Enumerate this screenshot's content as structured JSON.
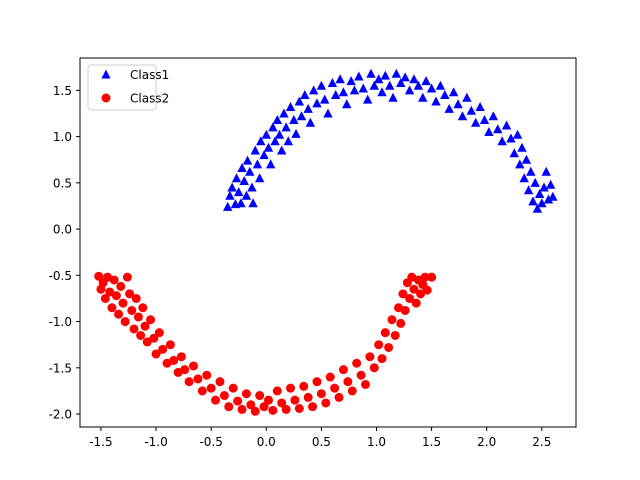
{
  "chart_data": {
    "type": "scatter",
    "title": "",
    "xlabel": "",
    "ylabel": "",
    "xlim": [
      -1.69,
      2.81
    ],
    "ylim": [
      -2.14,
      1.85
    ],
    "grid": false,
    "legend_position": "top-left",
    "xticks": [
      "-1.5",
      "-1.0",
      "-0.5",
      "0.0",
      "0.5",
      "1.0",
      "1.5",
      "2.0",
      "2.5"
    ],
    "yticks": [
      "-2.0",
      "-1.5",
      "-1.0",
      "-0.5",
      "0.0",
      "0.5",
      "1.0",
      "1.5"
    ],
    "series": [
      {
        "name": "Class1",
        "marker": "triangle",
        "color": "#0000ff",
        "points": [
          [
            -0.35,
            0.24
          ],
          [
            -0.33,
            0.36
          ],
          [
            -0.31,
            0.45
          ],
          [
            -0.28,
            0.27
          ],
          [
            -0.27,
            0.55
          ],
          [
            -0.25,
            0.4
          ],
          [
            -0.23,
            0.28
          ],
          [
            -0.22,
            0.66
          ],
          [
            -0.2,
            0.52
          ],
          [
            -0.18,
            0.36
          ],
          [
            -0.17,
            0.74
          ],
          [
            -0.15,
            0.62
          ],
          [
            -0.13,
            0.45
          ],
          [
            -0.12,
            0.28
          ],
          [
            -0.1,
            0.85
          ],
          [
            -0.08,
            0.7
          ],
          [
            -0.06,
            0.55
          ],
          [
            -0.05,
            0.95
          ],
          [
            -0.02,
            0.8
          ],
          [
            0.0,
            1.02
          ],
          [
            0.02,
            0.88
          ],
          [
            0.04,
            0.7
          ],
          [
            0.06,
            1.1
          ],
          [
            0.08,
            0.95
          ],
          [
            0.1,
            1.18
          ],
          [
            0.12,
            1.02
          ],
          [
            0.14,
            0.85
          ],
          [
            0.16,
            1.25
          ],
          [
            0.18,
            1.1
          ],
          [
            0.2,
            0.95
          ],
          [
            0.22,
            1.32
          ],
          [
            0.25,
            1.18
          ],
          [
            0.27,
            1.03
          ],
          [
            0.3,
            1.38
          ],
          [
            0.32,
            1.22
          ],
          [
            0.35,
            1.45
          ],
          [
            0.38,
            1.3
          ],
          [
            0.4,
            1.15
          ],
          [
            0.43,
            1.5
          ],
          [
            0.46,
            1.36
          ],
          [
            0.5,
            1.55
          ],
          [
            0.53,
            1.4
          ],
          [
            0.56,
            1.25
          ],
          [
            0.6,
            1.58
          ],
          [
            0.63,
            1.45
          ],
          [
            0.67,
            1.62
          ],
          [
            0.7,
            1.48
          ],
          [
            0.73,
            1.35
          ],
          [
            0.77,
            1.6
          ],
          [
            0.8,
            1.5
          ],
          [
            0.84,
            1.65
          ],
          [
            0.88,
            1.52
          ],
          [
            0.92,
            1.4
          ],
          [
            0.95,
            1.68
          ],
          [
            0.98,
            1.55
          ],
          [
            1.02,
            1.62
          ],
          [
            1.05,
            1.48
          ],
          [
            1.08,
            1.66
          ],
          [
            1.12,
            1.55
          ],
          [
            1.15,
            1.42
          ],
          [
            1.18,
            1.68
          ],
          [
            1.22,
            1.58
          ],
          [
            1.26,
            1.64
          ],
          [
            1.3,
            1.5
          ],
          [
            1.34,
            1.62
          ],
          [
            1.38,
            1.55
          ],
          [
            1.42,
            1.42
          ],
          [
            1.45,
            1.6
          ],
          [
            1.5,
            1.52
          ],
          [
            1.54,
            1.38
          ],
          [
            1.58,
            1.55
          ],
          [
            1.62,
            1.45
          ],
          [
            1.66,
            1.3
          ],
          [
            1.7,
            1.48
          ],
          [
            1.74,
            1.35
          ],
          [
            1.78,
            1.22
          ],
          [
            1.82,
            1.42
          ],
          [
            1.86,
            1.28
          ],
          [
            1.9,
            1.15
          ],
          [
            1.94,
            1.32
          ],
          [
            1.98,
            1.18
          ],
          [
            2.02,
            1.05
          ],
          [
            2.06,
            1.22
          ],
          [
            2.1,
            1.08
          ],
          [
            2.14,
            0.95
          ],
          [
            2.18,
            1.12
          ],
          [
            2.22,
            0.98
          ],
          [
            2.25,
            0.82
          ],
          [
            2.28,
            1.02
          ],
          [
            2.3,
            0.7
          ],
          [
            2.32,
            0.88
          ],
          [
            2.34,
            0.55
          ],
          [
            2.36,
            0.75
          ],
          [
            2.38,
            0.42
          ],
          [
            2.4,
            0.62
          ],
          [
            2.42,
            0.3
          ],
          [
            2.44,
            0.5
          ],
          [
            2.46,
            0.22
          ],
          [
            2.48,
            0.38
          ],
          [
            2.5,
            0.28
          ],
          [
            2.52,
            0.45
          ],
          [
            2.54,
            0.62
          ],
          [
            2.56,
            0.32
          ],
          [
            2.58,
            0.48
          ],
          [
            2.6,
            0.35
          ]
        ]
      },
      {
        "name": "Class2",
        "marker": "circle",
        "color": "#ff0000",
        "points": [
          [
            -1.52,
            -0.51
          ],
          [
            -1.5,
            -0.65
          ],
          [
            -1.48,
            -0.58
          ],
          [
            -1.46,
            -0.75
          ],
          [
            -1.44,
            -0.52
          ],
          [
            -1.42,
            -0.68
          ],
          [
            -1.4,
            -0.85
          ],
          [
            -1.38,
            -0.55
          ],
          [
            -1.36,
            -0.72
          ],
          [
            -1.34,
            -0.92
          ],
          [
            -1.32,
            -0.62
          ],
          [
            -1.3,
            -0.8
          ],
          [
            -1.28,
            -1.0
          ],
          [
            -1.26,
            -0.52
          ],
          [
            -1.24,
            -0.7
          ],
          [
            -1.22,
            -0.88
          ],
          [
            -1.2,
            -1.08
          ],
          [
            -1.18,
            -0.75
          ],
          [
            -1.16,
            -0.95
          ],
          [
            -1.14,
            -1.15
          ],
          [
            -1.12,
            -0.85
          ],
          [
            -1.1,
            -1.05
          ],
          [
            -1.08,
            -1.22
          ],
          [
            -1.05,
            -0.98
          ],
          [
            -1.02,
            -1.18
          ],
          [
            -1.0,
            -1.35
          ],
          [
            -0.97,
            -1.12
          ],
          [
            -0.94,
            -1.3
          ],
          [
            -0.9,
            -1.45
          ],
          [
            -0.87,
            -1.25
          ],
          [
            -0.84,
            -1.42
          ],
          [
            -0.8,
            -1.55
          ],
          [
            -0.77,
            -1.38
          ],
          [
            -0.74,
            -1.52
          ],
          [
            -0.7,
            -1.65
          ],
          [
            -0.66,
            -1.48
          ],
          [
            -0.62,
            -1.62
          ],
          [
            -0.58,
            -1.75
          ],
          [
            -0.54,
            -1.58
          ],
          [
            -0.5,
            -1.72
          ],
          [
            -0.46,
            -1.85
          ],
          [
            -0.42,
            -1.65
          ],
          [
            -0.38,
            -1.8
          ],
          [
            -0.34,
            -1.92
          ],
          [
            -0.3,
            -1.72
          ],
          [
            -0.26,
            -1.86
          ],
          [
            -0.22,
            -1.95
          ],
          [
            -0.18,
            -1.78
          ],
          [
            -0.14,
            -1.9
          ],
          [
            -0.1,
            -1.97
          ],
          [
            -0.06,
            -1.8
          ],
          [
            -0.02,
            -1.92
          ],
          [
            0.02,
            -1.85
          ],
          [
            0.06,
            -1.96
          ],
          [
            0.1,
            -1.75
          ],
          [
            0.14,
            -1.88
          ],
          [
            0.18,
            -1.95
          ],
          [
            0.22,
            -1.72
          ],
          [
            0.26,
            -1.85
          ],
          [
            0.3,
            -1.94
          ],
          [
            0.34,
            -1.7
          ],
          [
            0.38,
            -1.82
          ],
          [
            0.42,
            -1.92
          ],
          [
            0.46,
            -1.65
          ],
          [
            0.5,
            -1.78
          ],
          [
            0.54,
            -1.88
          ],
          [
            0.58,
            -1.6
          ],
          [
            0.62,
            -1.72
          ],
          [
            0.66,
            -1.82
          ],
          [
            0.7,
            -1.52
          ],
          [
            0.74,
            -1.65
          ],
          [
            0.78,
            -1.75
          ],
          [
            0.82,
            -1.45
          ],
          [
            0.86,
            -1.58
          ],
          [
            0.9,
            -1.68
          ],
          [
            0.94,
            -1.38
          ],
          [
            0.98,
            -1.5
          ],
          [
            1.02,
            -1.25
          ],
          [
            1.05,
            -1.4
          ],
          [
            1.08,
            -1.12
          ],
          [
            1.11,
            -1.28
          ],
          [
            1.14,
            -0.98
          ],
          [
            1.17,
            -1.15
          ],
          [
            1.2,
            -0.85
          ],
          [
            1.22,
            -1.02
          ],
          [
            1.24,
            -0.7
          ],
          [
            1.26,
            -0.88
          ],
          [
            1.28,
            -0.58
          ],
          [
            1.3,
            -0.75
          ],
          [
            1.32,
            -0.52
          ],
          [
            1.34,
            -0.65
          ],
          [
            1.36,
            -0.8
          ],
          [
            1.38,
            -0.55
          ],
          [
            1.4,
            -0.7
          ],
          [
            1.42,
            -0.6
          ],
          [
            1.44,
            -0.52
          ],
          [
            1.46,
            -0.66
          ],
          [
            1.5,
            -0.52
          ]
        ]
      }
    ]
  }
}
